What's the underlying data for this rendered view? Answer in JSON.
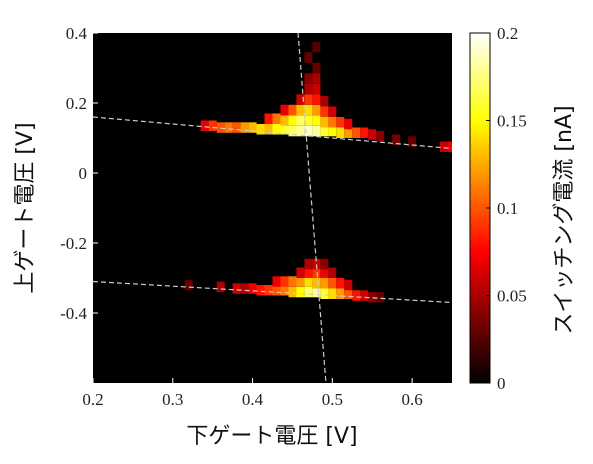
{
  "chart_data": {
    "type": "heatmap",
    "xlabel": "下ゲート電圧 [V]",
    "ylabel": "上ゲート電圧 [V]",
    "colorbar_label": "スイッチング電流 [nA]",
    "xlim": [
      0.2,
      0.65
    ],
    "ylim": [
      -0.6,
      0.4
    ],
    "x_ticks": [
      0.2,
      0.3,
      0.4,
      0.5,
      0.6
    ],
    "x_tick_labels": [
      "0.2",
      "0.3",
      "0.4",
      "0.5",
      "0.6"
    ],
    "y_ticks": [
      0.4,
      0.2,
      0,
      -0.2,
      -0.4
    ],
    "y_tick_labels": [
      "0.4",
      "0.2",
      "0",
      "-0.2",
      "-0.4"
    ],
    "color_range": [
      0,
      0.2
    ],
    "colorbar_ticks": [
      0,
      0.05,
      0.1,
      0.15,
      0.2
    ],
    "colorbar_tick_labels": [
      "0",
      "0.05",
      "0.1",
      "0.15",
      "0.2"
    ],
    "colormap": "hot",
    "background_color": "#000000",
    "guide_line_color": "#cccccc",
    "guide_lines": [
      {
        "x1": 0.2,
        "y1": 0.16,
        "x2": 0.65,
        "y2": 0.07
      },
      {
        "x1": 0.2,
        "y1": -0.31,
        "x2": 0.65,
        "y2": -0.37
      },
      {
        "x1": 0.457,
        "y1": 0.4,
        "x2": 0.492,
        "y2": -0.6
      }
    ],
    "cells": [
      {
        "x": 0.34,
        "y": 0.135,
        "v": 0.07
      },
      {
        "x": 0.35,
        "y": 0.135,
        "v": 0.09
      },
      {
        "x": 0.36,
        "y": 0.13,
        "v": 0.1
      },
      {
        "x": 0.37,
        "y": 0.13,
        "v": 0.11
      },
      {
        "x": 0.38,
        "y": 0.13,
        "v": 0.1
      },
      {
        "x": 0.39,
        "y": 0.13,
        "v": 0.12
      },
      {
        "x": 0.4,
        "y": 0.13,
        "v": 0.13
      },
      {
        "x": 0.41,
        "y": 0.125,
        "v": 0.14
      },
      {
        "x": 0.42,
        "y": 0.125,
        "v": 0.13
      },
      {
        "x": 0.43,
        "y": 0.125,
        "v": 0.15
      },
      {
        "x": 0.44,
        "y": 0.125,
        "v": 0.16
      },
      {
        "x": 0.45,
        "y": 0.12,
        "v": 0.17
      },
      {
        "x": 0.46,
        "y": 0.12,
        "v": 0.18
      },
      {
        "x": 0.47,
        "y": 0.12,
        "v": 0.19
      },
      {
        "x": 0.48,
        "y": 0.12,
        "v": 0.18
      },
      {
        "x": 0.49,
        "y": 0.12,
        "v": 0.16
      },
      {
        "x": 0.5,
        "y": 0.12,
        "v": 0.15
      },
      {
        "x": 0.51,
        "y": 0.115,
        "v": 0.14
      },
      {
        "x": 0.52,
        "y": 0.115,
        "v": 0.12
      },
      {
        "x": 0.53,
        "y": 0.115,
        "v": 0.1
      },
      {
        "x": 0.54,
        "y": 0.115,
        "v": 0.08
      },
      {
        "x": 0.55,
        "y": 0.11,
        "v": 0.06
      },
      {
        "x": 0.42,
        "y": 0.155,
        "v": 0.08
      },
      {
        "x": 0.43,
        "y": 0.155,
        "v": 0.11
      },
      {
        "x": 0.44,
        "y": 0.15,
        "v": 0.13
      },
      {
        "x": 0.45,
        "y": 0.15,
        "v": 0.15
      },
      {
        "x": 0.46,
        "y": 0.15,
        "v": 0.17
      },
      {
        "x": 0.47,
        "y": 0.15,
        "v": 0.16
      },
      {
        "x": 0.48,
        "y": 0.15,
        "v": 0.15
      },
      {
        "x": 0.49,
        "y": 0.145,
        "v": 0.13
      },
      {
        "x": 0.5,
        "y": 0.145,
        "v": 0.11
      },
      {
        "x": 0.51,
        "y": 0.145,
        "v": 0.09
      },
      {
        "x": 0.52,
        "y": 0.14,
        "v": 0.07
      },
      {
        "x": 0.44,
        "y": 0.18,
        "v": 0.07
      },
      {
        "x": 0.45,
        "y": 0.18,
        "v": 0.1
      },
      {
        "x": 0.46,
        "y": 0.18,
        "v": 0.13
      },
      {
        "x": 0.47,
        "y": 0.18,
        "v": 0.14
      },
      {
        "x": 0.48,
        "y": 0.18,
        "v": 0.12
      },
      {
        "x": 0.49,
        "y": 0.175,
        "v": 0.09
      },
      {
        "x": 0.5,
        "y": 0.175,
        "v": 0.06
      },
      {
        "x": 0.46,
        "y": 0.21,
        "v": 0.06
      },
      {
        "x": 0.47,
        "y": 0.21,
        "v": 0.09
      },
      {
        "x": 0.48,
        "y": 0.21,
        "v": 0.08
      },
      {
        "x": 0.49,
        "y": 0.205,
        "v": 0.05
      },
      {
        "x": 0.47,
        "y": 0.24,
        "v": 0.05
      },
      {
        "x": 0.48,
        "y": 0.24,
        "v": 0.06
      },
      {
        "x": 0.47,
        "y": 0.27,
        "v": 0.04
      },
      {
        "x": 0.48,
        "y": 0.27,
        "v": 0.05
      },
      {
        "x": 0.48,
        "y": 0.3,
        "v": 0.03
      },
      {
        "x": 0.47,
        "y": 0.33,
        "v": 0.03
      },
      {
        "x": 0.48,
        "y": 0.36,
        "v": 0.025
      },
      {
        "x": 0.56,
        "y": 0.105,
        "v": 0.04
      },
      {
        "x": 0.58,
        "y": 0.095,
        "v": 0.035
      },
      {
        "x": 0.6,
        "y": 0.09,
        "v": 0.03
      },
      {
        "x": 0.64,
        "y": 0.075,
        "v": 0.06
      },
      {
        "x": 0.65,
        "y": 0.075,
        "v": 0.07
      },
      {
        "x": 0.36,
        "y": -0.325,
        "v": 0.05
      },
      {
        "x": 0.38,
        "y": -0.33,
        "v": 0.06
      },
      {
        "x": 0.39,
        "y": -0.33,
        "v": 0.05
      },
      {
        "x": 0.4,
        "y": -0.33,
        "v": 0.07
      },
      {
        "x": 0.41,
        "y": -0.335,
        "v": 0.08
      },
      {
        "x": 0.42,
        "y": -0.335,
        "v": 0.09
      },
      {
        "x": 0.43,
        "y": -0.335,
        "v": 0.1
      },
      {
        "x": 0.44,
        "y": -0.335,
        "v": 0.11
      },
      {
        "x": 0.45,
        "y": -0.34,
        "v": 0.13
      },
      {
        "x": 0.46,
        "y": -0.34,
        "v": 0.15
      },
      {
        "x": 0.47,
        "y": -0.34,
        "v": 0.17
      },
      {
        "x": 0.48,
        "y": -0.34,
        "v": 0.18
      },
      {
        "x": 0.49,
        "y": -0.345,
        "v": 0.16
      },
      {
        "x": 0.5,
        "y": -0.345,
        "v": 0.14
      },
      {
        "x": 0.51,
        "y": -0.345,
        "v": 0.12
      },
      {
        "x": 0.52,
        "y": -0.345,
        "v": 0.1
      },
      {
        "x": 0.53,
        "y": -0.35,
        "v": 0.08
      },
      {
        "x": 0.54,
        "y": -0.35,
        "v": 0.06
      },
      {
        "x": 0.43,
        "y": -0.31,
        "v": 0.07
      },
      {
        "x": 0.44,
        "y": -0.31,
        "v": 0.09
      },
      {
        "x": 0.45,
        "y": -0.31,
        "v": 0.11
      },
      {
        "x": 0.46,
        "y": -0.31,
        "v": 0.12
      },
      {
        "x": 0.47,
        "y": -0.31,
        "v": 0.14
      },
      {
        "x": 0.48,
        "y": -0.315,
        "v": 0.13
      },
      {
        "x": 0.49,
        "y": -0.315,
        "v": 0.12
      },
      {
        "x": 0.5,
        "y": -0.315,
        "v": 0.1
      },
      {
        "x": 0.51,
        "y": -0.315,
        "v": 0.08
      },
      {
        "x": 0.52,
        "y": -0.32,
        "v": 0.06
      },
      {
        "x": 0.46,
        "y": -0.285,
        "v": 0.06
      },
      {
        "x": 0.47,
        "y": -0.285,
        "v": 0.08
      },
      {
        "x": 0.48,
        "y": -0.285,
        "v": 0.09
      },
      {
        "x": 0.49,
        "y": -0.285,
        "v": 0.07
      },
      {
        "x": 0.5,
        "y": -0.285,
        "v": 0.05
      },
      {
        "x": 0.47,
        "y": -0.26,
        "v": 0.05
      },
      {
        "x": 0.48,
        "y": -0.26,
        "v": 0.06
      },
      {
        "x": 0.49,
        "y": -0.26,
        "v": 0.04
      },
      {
        "x": 0.32,
        "y": -0.32,
        "v": 0.03
      },
      {
        "x": 0.55,
        "y": -0.355,
        "v": 0.04
      },
      {
        "x": 0.56,
        "y": -0.355,
        "v": 0.03
      }
    ]
  }
}
